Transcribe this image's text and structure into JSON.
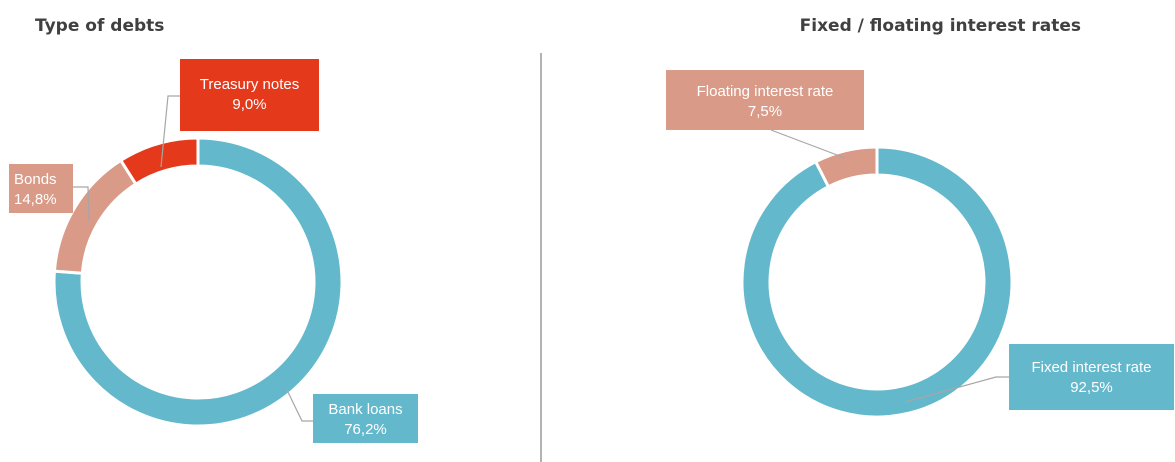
{
  "charts": [
    {
      "title": "Type of debts",
      "chart_data": {
        "type": "pie",
        "title": "Type of debts",
        "categories": [
          "Bank loans",
          "Bonds",
          "Treasury notes"
        ],
        "values": [
          76.2,
          14.8,
          9.0
        ],
        "value_labels": [
          "76,2%",
          "14,8%",
          "9,0%"
        ],
        "colors": [
          "#63b8cc",
          "#d99a87",
          "#e4391b"
        ],
        "donut": true
      }
    },
    {
      "title": "Fixed / floating interest rates",
      "chart_data": {
        "type": "pie",
        "title": "Fixed / floating interest rates",
        "categories": [
          "Fixed interest rate",
          "Floating interest rate"
        ],
        "values": [
          92.5,
          7.5
        ],
        "value_labels": [
          "92,5%",
          "7,5%"
        ],
        "colors": [
          "#63b8cc",
          "#d99a87"
        ],
        "donut": true
      }
    }
  ]
}
